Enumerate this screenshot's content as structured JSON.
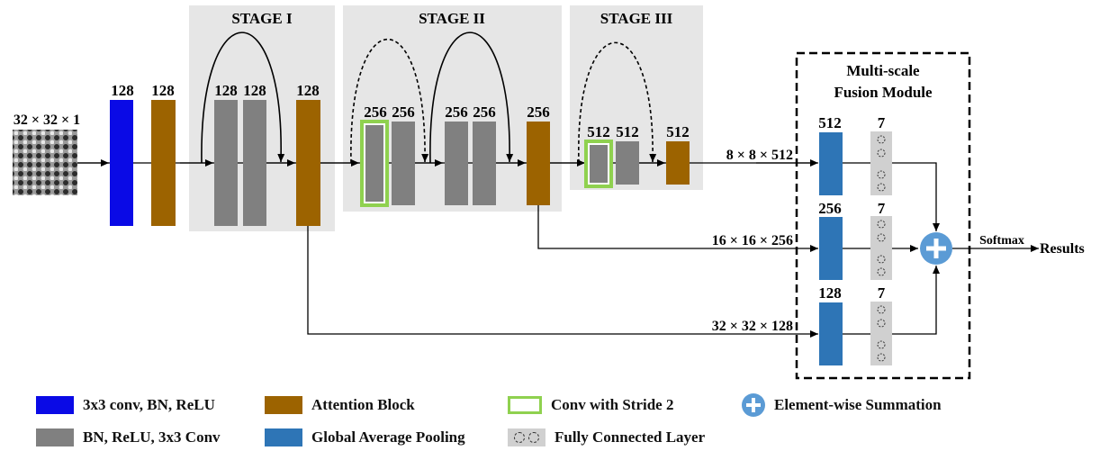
{
  "stages": {
    "stage1": "STAGE I",
    "stage2": "STAGE II",
    "stage3": "STAGE III"
  },
  "input_label": "32 × 32 × 1",
  "block_labels": {
    "b1": "128",
    "b2": "128",
    "b3": "128",
    "b4": "128",
    "b5": "128",
    "b6": "256",
    "b7": "256",
    "b8": "256",
    "b9": "256",
    "b10": "256",
    "b11": "512",
    "b12": "512",
    "b13": "512"
  },
  "fusion": {
    "title_line1": "Multi-scale",
    "title_line2": "Fusion Module",
    "gap1": "512",
    "gap2": "256",
    "gap3": "128",
    "fc1": "7",
    "fc2": "7",
    "fc3": "7"
  },
  "connections": {
    "c1": "8 × 8 × 512",
    "c2": "16 × 16 × 256",
    "c3": "32 × 32 × 128",
    "softmax": "Softmax",
    "results": "Results"
  },
  "legend": {
    "conv_bn_relu": "3x3 conv, BN, ReLU",
    "attention": "Attention Block",
    "stride2": "Conv with Stride 2",
    "summation": "Element-wise Summation",
    "bn_relu_conv": "BN, ReLU, 3x3 Conv",
    "gap": "Global Average Pooling",
    "fc": "Fully Connected Layer"
  },
  "colors": {
    "conv_blue": "#0a0ae6",
    "attention_brown": "#9c6300",
    "residual_gray": "#808080",
    "gap_blue": "#2e75b6",
    "stride_green": "#8fd14f",
    "stage_bg": "#e6e6e6"
  }
}
